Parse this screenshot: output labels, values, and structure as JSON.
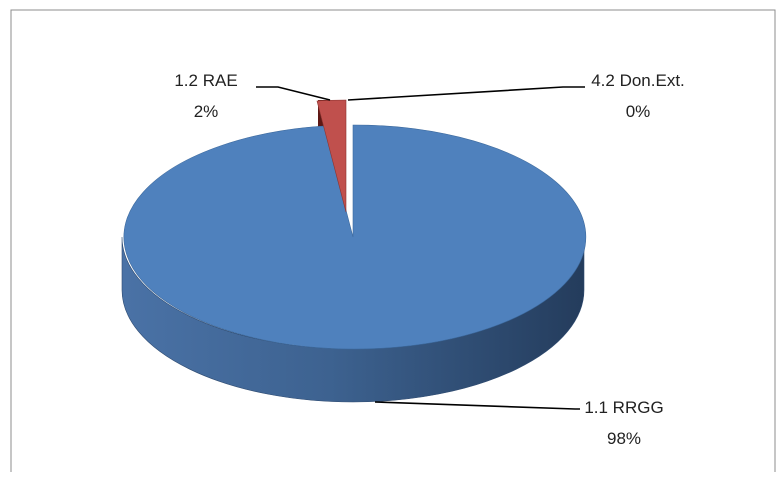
{
  "chart_data": {
    "type": "pie",
    "style": "3d-exploded",
    "slices": [
      {
        "label": "1.1 RRGG",
        "percent_label": "98%",
        "value": 98,
        "color": "#4f81bd"
      },
      {
        "label": "1.2 RAE",
        "percent_label": "2%",
        "value": 2,
        "color": "#c0504d"
      },
      {
        "label": "4.2 Don.Ext.",
        "percent_label": "0%",
        "value": 0,
        "color": "#9bbb59"
      }
    ]
  }
}
